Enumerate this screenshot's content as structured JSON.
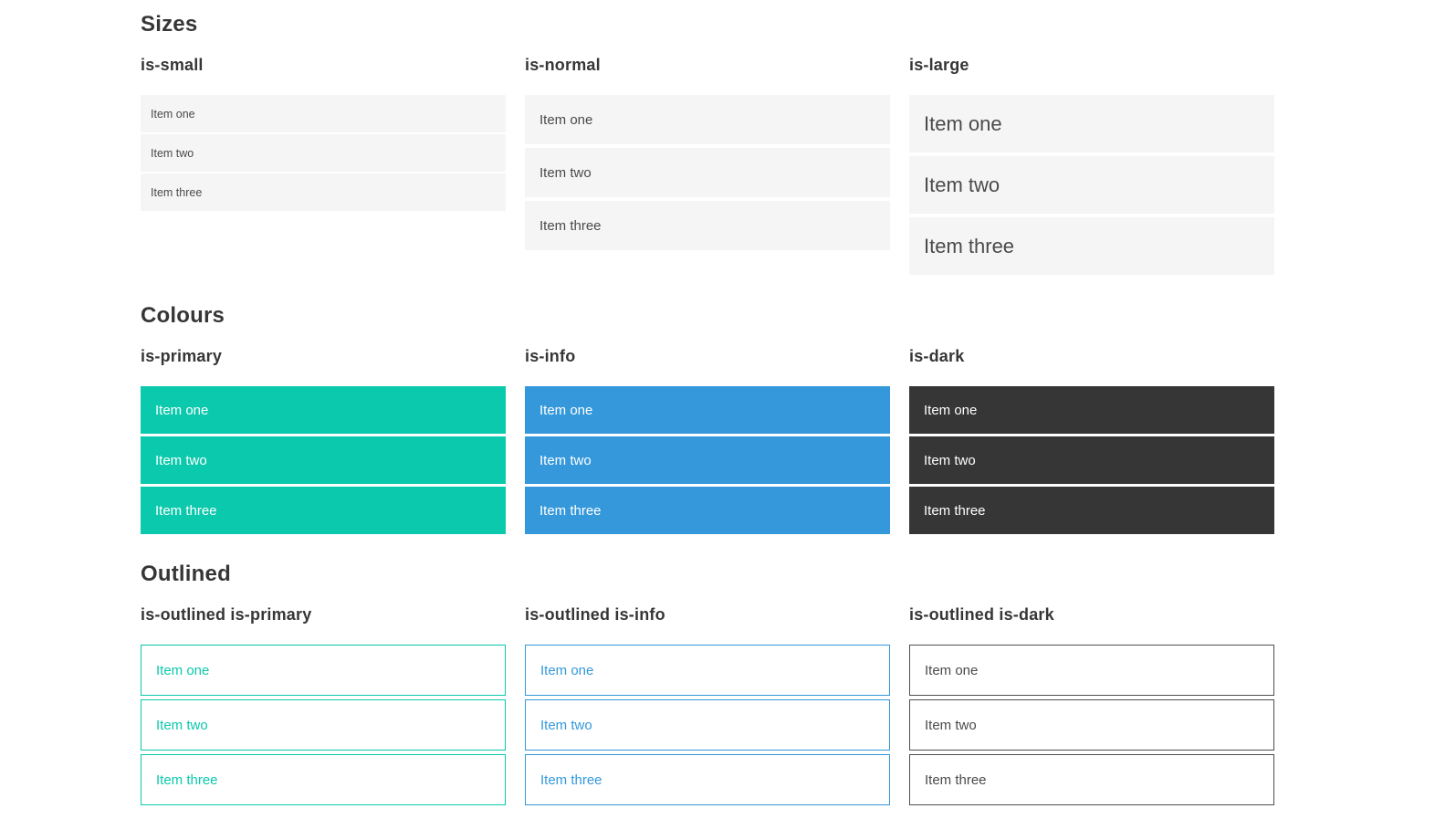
{
  "colors": {
    "primary": "#0bc9ac",
    "info": "#3498db",
    "dark": "#363636",
    "dark_outline_border": "#4f4f4f",
    "item_bg": "#f5f5f5",
    "item_text": "#4a4a4a",
    "heading_text": "#363636",
    "white": "#ffffff"
  },
  "sections": [
    {
      "title": "Sizes",
      "columns": [
        {
          "label": "is-small",
          "variant": "size-small",
          "items": [
            "Item one",
            "Item two",
            "Item three"
          ]
        },
        {
          "label": "is-normal",
          "variant": "size-normal",
          "items": [
            "Item one",
            "Item two",
            "Item three"
          ]
        },
        {
          "label": "is-large",
          "variant": "size-large",
          "items": [
            "Item one",
            "Item two",
            "Item three"
          ]
        }
      ]
    },
    {
      "title": "Colours",
      "columns": [
        {
          "label": "is-primary",
          "variant": "color-primary",
          "items": [
            "Item one",
            "Item two",
            "Item three"
          ]
        },
        {
          "label": "is-info",
          "variant": "color-info",
          "items": [
            "Item one",
            "Item two",
            "Item three"
          ]
        },
        {
          "label": "is-dark",
          "variant": "color-dark",
          "items": [
            "Item one",
            "Item two",
            "Item three"
          ]
        }
      ]
    },
    {
      "title": "Outlined",
      "columns": [
        {
          "label": "is-outlined is-primary",
          "variant": "outlined-primary",
          "items": [
            "Item one",
            "Item two",
            "Item three"
          ]
        },
        {
          "label": "is-outlined is-info",
          "variant": "outlined-info",
          "items": [
            "Item one",
            "Item two",
            "Item three"
          ]
        },
        {
          "label": "is-outlined is-dark",
          "variant": "outlined-dark",
          "items": [
            "Item one",
            "Item two",
            "Item three"
          ]
        }
      ]
    }
  ]
}
